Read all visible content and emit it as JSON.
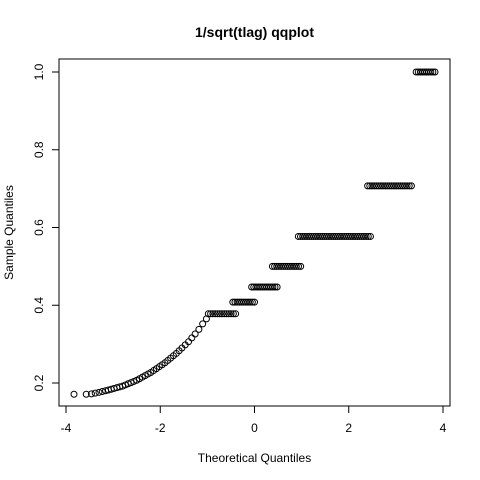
{
  "chart_data": {
    "type": "scatter",
    "title": "1/sqrt(tlag) qqplot",
    "xlabel": "Theoretical Quantiles",
    "ylabel": "Sample Quantiles",
    "xlim": [
      -4.0,
      4.0
    ],
    "ylim": [
      0.15,
      1.04
    ],
    "xticks": [
      -4,
      -2,
      0,
      2,
      4
    ],
    "yticks": [
      0.2,
      0.4,
      0.6,
      0.8,
      1.0
    ],
    "grid": false,
    "legend": "none",
    "marker": "open-circle",
    "point_color": "#000000",
    "series": [
      {
        "points": [
          [
            -3.83,
            0.171
          ],
          [
            -3.57,
            0.171
          ],
          [
            -3.46,
            0.172
          ],
          [
            -3.38,
            0.174
          ],
          [
            -3.3,
            0.176
          ],
          [
            -3.23,
            0.178
          ],
          [
            -3.16,
            0.18
          ],
          [
            -3.1,
            0.182
          ],
          [
            -3.04,
            0.184
          ],
          [
            -2.98,
            0.186
          ],
          [
            -2.92,
            0.188
          ],
          [
            -2.86,
            0.19
          ],
          [
            -2.8,
            0.192
          ],
          [
            -2.74,
            0.195
          ],
          [
            -2.68,
            0.198
          ],
          [
            -2.62,
            0.201
          ],
          [
            -2.56,
            0.204
          ],
          [
            -2.5,
            0.207
          ],
          [
            -2.44,
            0.211
          ],
          [
            -2.38,
            0.215
          ],
          [
            -2.32,
            0.219
          ],
          [
            -2.26,
            0.223
          ],
          [
            -2.2,
            0.227
          ],
          [
            -2.14,
            0.232
          ],
          [
            -2.08,
            0.237
          ],
          [
            -2.02,
            0.242
          ],
          [
            -1.96,
            0.247
          ],
          [
            -1.9,
            0.252
          ],
          [
            -1.84,
            0.258
          ],
          [
            -1.78,
            0.264
          ],
          [
            -1.72,
            0.27
          ],
          [
            -1.66,
            0.276
          ],
          [
            -1.6,
            0.283
          ],
          [
            -1.54,
            0.29
          ],
          [
            -1.47,
            0.298
          ],
          [
            -1.4,
            0.306
          ],
          [
            -1.33,
            0.316
          ],
          [
            -1.26,
            0.326
          ],
          [
            -1.18,
            0.338
          ],
          [
            -1.1,
            0.352
          ],
          [
            -1.02,
            0.365
          ]
        ]
      }
    ],
    "plateaus": [
      {
        "y": 0.378,
        "x_from": -0.98,
        "x_to": -0.4
      },
      {
        "y": 0.408,
        "x_from": -0.46,
        "x_to": 0.0
      },
      {
        "y": 0.447,
        "x_from": -0.06,
        "x_to": 0.48
      },
      {
        "y": 0.5,
        "x_from": 0.38,
        "x_to": 0.98
      },
      {
        "y": 0.577,
        "x_from": 0.93,
        "x_to": 2.46
      },
      {
        "y": 0.707,
        "x_from": 2.4,
        "x_to": 3.33
      },
      {
        "y": 1.0,
        "x_from": 3.43,
        "x_to": 3.83
      }
    ]
  }
}
